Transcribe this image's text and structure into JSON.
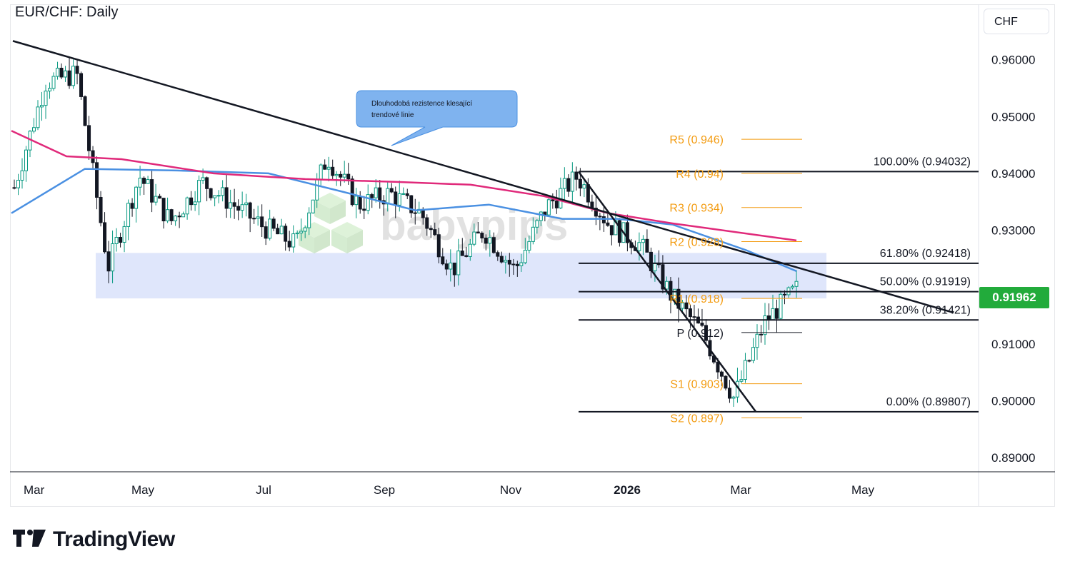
{
  "title": "EUR/CHF: Daily",
  "currency": "CHF",
  "last_price": "0.91962",
  "brand": "TradingView",
  "watermark": "babypips",
  "callout": {
    "line1": "Dlouhodobá rezistence klesající",
    "line2": "trendové linie"
  },
  "colors": {
    "up_candle": "#089981",
    "down_candle": "#131722",
    "ma_short": "#4a90e2",
    "ma_long": "#e0297a",
    "zone": "#dbe3fb",
    "pivot": "#f39c12",
    "price_badge": "#22ab3b",
    "callout": "#7fb3ef"
  },
  "chart_data": {
    "type": "candlestick",
    "title": "EUR/CHF: Daily",
    "y_axis": {
      "ticks": [
        "0.96000",
        "0.95000",
        "0.94000",
        "0.93000",
        "0.91000",
        "0.90000",
        "0.89000"
      ],
      "range": [
        0.8875,
        0.9695
      ],
      "side": "right"
    },
    "x_axis": {
      "ticks": [
        "Mar",
        "May",
        "Jul",
        "Sep",
        "Nov",
        "2026",
        "Mar",
        "May"
      ]
    },
    "anchors": [
      {
        "date": "Mar 2025",
        "price": 0.9375
      },
      {
        "date": "Mar 2025",
        "price": 0.956
      },
      {
        "date": "Apr 2025",
        "price": 0.9575
      },
      {
        "date": "Apr 2025",
        "price": 0.9235
      },
      {
        "date": "May 2025",
        "price": 0.9395
      },
      {
        "date": "May 2025",
        "price": 0.9315
      },
      {
        "date": "Jun 2025",
        "price": 0.9385
      },
      {
        "date": "Jul 2025",
        "price": 0.9345
      },
      {
        "date": "Jul 2025",
        "price": 0.9305
      },
      {
        "date": "Aug 2025",
        "price": 0.9275
      },
      {
        "date": "Aug 2025",
        "price": 0.943
      },
      {
        "date": "Sep 2025",
        "price": 0.9345
      },
      {
        "date": "Sep 2025",
        "price": 0.9365
      },
      {
        "date": "Oct 2025",
        "price": 0.933
      },
      {
        "date": "Oct 2025",
        "price": 0.923
      },
      {
        "date": "Nov 2025",
        "price": 0.93
      },
      {
        "date": "Nov 2025",
        "price": 0.923
      },
      {
        "date": "Dec 2025",
        "price": 0.934
      },
      {
        "date": "Dec 2025",
        "price": 0.9395
      },
      {
        "date": "Jan 2026",
        "price": 0.931
      },
      {
        "date": "Jan 2026",
        "price": 0.9275
      },
      {
        "date": "Feb 2026",
        "price": 0.9185
      },
      {
        "date": "Feb 2026",
        "price": 0.912
      },
      {
        "date": "Mar 2026",
        "price": 0.9005
      },
      {
        "date": "Mar 2026",
        "price": 0.914
      },
      {
        "date": "Mar 2026",
        "price": 0.91962
      }
    ],
    "moving_averages": [
      {
        "color": "#4a90e2",
        "points": [
          [
            0.933,
            0
          ],
          [
            0.9408,
            0.08
          ],
          [
            0.9405,
            0.18
          ],
          [
            0.94,
            0.28
          ],
          [
            0.9368,
            0.36
          ],
          [
            0.9335,
            0.44
          ],
          [
            0.9345,
            0.52
          ],
          [
            0.932,
            0.6
          ],
          [
            0.932,
            0.66
          ],
          [
            0.931,
            0.72
          ],
          [
            0.9265,
            0.8
          ],
          [
            0.9228,
            0.855
          ]
        ]
      },
      {
        "color": "#e0297a",
        "points": [
          [
            0.9475,
            0
          ],
          [
            0.943,
            0.06
          ],
          [
            0.9425,
            0.12
          ],
          [
            0.94,
            0.22
          ],
          [
            0.939,
            0.32
          ],
          [
            0.9385,
            0.42
          ],
          [
            0.938,
            0.5
          ],
          [
            0.936,
            0.58
          ],
          [
            0.933,
            0.65
          ],
          [
            0.9312,
            0.72
          ],
          [
            0.9282,
            0.855
          ]
        ]
      }
    ],
    "trendlines": [
      {
        "from": "Mar 2025",
        "from_price": 0.9633,
        "to": "Apr 2026",
        "to_price": 0.9155
      },
      {
        "from": "Dec 2025",
        "from_price": 0.9403,
        "to": "Mar 2026",
        "to_price": 0.8981
      }
    ],
    "zone": {
      "from_price": 0.926,
      "to_price": 0.918
    },
    "fibonacci": [
      {
        "label": "100.00% (0.94032)",
        "price": 0.94032
      },
      {
        "label": "61.80% (0.92418)",
        "price": 0.92418
      },
      {
        "label": "50.00% (0.91919)",
        "price": 0.91919
      },
      {
        "label": "38.20% (0.91421)",
        "price": 0.91421
      },
      {
        "label": "0.00% (0.89807)",
        "price": 0.89807
      }
    ],
    "pivots": [
      {
        "label": "R5 (0.946)",
        "price": 0.946
      },
      {
        "label": "R4 (0.94)",
        "price": 0.94
      },
      {
        "label": "R3 (0.934)",
        "price": 0.934
      },
      {
        "label": "R2 (0.928)",
        "price": 0.928
      },
      {
        "label": "R1 (0.918)",
        "price": 0.918
      },
      {
        "label": "P (0.912)",
        "price": 0.912
      },
      {
        "label": "S1 (0.903)",
        "price": 0.903
      },
      {
        "label": "S2 (0.897)",
        "price": 0.897
      }
    ]
  }
}
